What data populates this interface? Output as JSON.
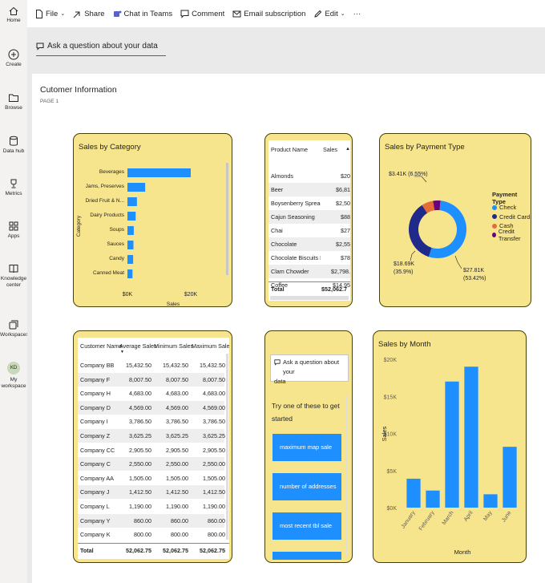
{
  "nav": {
    "home": "Home",
    "create": "Create",
    "browse": "Browse",
    "datahub": "Data hub",
    "metrics": "Metrics",
    "apps": "Apps",
    "knowledge1": "Knowledge",
    "knowledge2": "center",
    "workspaces": "Workspaces",
    "avatar": "KD",
    "myws1": "My",
    "myws2": "workspace"
  },
  "toolbar": {
    "file": "File",
    "share": "Share",
    "teams": "Chat in Teams",
    "comment": "Comment",
    "email": "Email subscription",
    "edit": "Edit",
    "more": "···"
  },
  "qa": {
    "placeholder": "Ask a question about your data"
  },
  "page": {
    "title": "Cutomer Information",
    "subtitle": "PAGE 1"
  },
  "colors": {
    "card_bg": "#f7e58d",
    "accent": "#1e8fff",
    "navy": "#1f2a8a",
    "orange": "#e66c37",
    "purple": "#6b007b"
  },
  "cat_chart": {
    "title": "Sales by Category",
    "xlabel": "Sales",
    "ylabel": "Category",
    "ticks": [
      "$0K",
      "$20K"
    ]
  },
  "prod_table": {
    "headers": [
      "Product Name",
      "Sales"
    ],
    "rows": [
      [
        "Almonds",
        "$20"
      ],
      [
        "Beer",
        "$6,81"
      ],
      [
        "Boysenberry Spread",
        "$2,50"
      ],
      [
        "Cajun Seasoning",
        "$88"
      ],
      [
        "Chai",
        "$27"
      ],
      [
        "Chocolate",
        "$2,55"
      ],
      [
        "Chocolate Biscuits Mix",
        "$78"
      ],
      [
        "Clam Chowder",
        "$2,798."
      ],
      [
        "Coffee",
        "$14,95"
      ]
    ],
    "total_label": "Total",
    "total_value": "$52,062.7"
  },
  "pay_chart": {
    "title": "Sales by Payment Type",
    "legend_title": "Payment Type",
    "labels": {
      "cash": "$3.41K (6.55%)",
      "transfer_pct": "",
      "credit": "$18.69K\n(35.9%)",
      "check": "$27.81K\n(53.42%)"
    },
    "label_lines": {
      "cash": "$3.41K (6.55%)",
      "credit_1": "$18.69K",
      "credit_2": "(35.9%)",
      "check_1": "$27.81K",
      "check_2": "(53.42%)"
    }
  },
  "cust_table": {
    "headers": [
      "Customer Name",
      "Average Sales",
      "Minimum Sales",
      "Maximum Sales"
    ],
    "rows": [
      [
        "Company BB",
        "15,432.50",
        "15,432.50",
        "15,432.50"
      ],
      [
        "Company F",
        "8,007.50",
        "8,007.50",
        "8,007.50"
      ],
      [
        "Company H",
        "4,683.00",
        "4,683.00",
        "4,683.00"
      ],
      [
        "Company D",
        "4,569.00",
        "4,569.00",
        "4,569.00"
      ],
      [
        "Company I",
        "3,786.50",
        "3,786.50",
        "3,786.50"
      ],
      [
        "Company Z",
        "3,625.25",
        "3,625.25",
        "3,625.25"
      ],
      [
        "Company CC",
        "2,905.50",
        "2,905.50",
        "2,905.50"
      ],
      [
        "Company C",
        "2,550.00",
        "2,550.00",
        "2,550.00"
      ],
      [
        "Company AA",
        "1,505.00",
        "1,505.00",
        "1,505.00"
      ],
      [
        "Company J",
        "1,412.50",
        "1,412.50",
        "1,412.50"
      ],
      [
        "Company L",
        "1,190.00",
        "1,190.00",
        "1,190.00"
      ],
      [
        "Company Y",
        "860.00",
        "860.00",
        "860.00"
      ],
      [
        "Company K",
        "800.00",
        "800.00",
        "800.00"
      ]
    ],
    "total": [
      "Total",
      "52,062.75",
      "52,062.75",
      "52,062.75"
    ]
  },
  "qa_card": {
    "input_line1": "Ask a question about your",
    "input_line2": "data",
    "prompt_line1": "Try one of these to get",
    "prompt_line2": "started",
    "suggestions": [
      "maximum map sale",
      "number of addresses",
      "most recent tbl sale"
    ]
  },
  "month_chart": {
    "title": "Sales by Month",
    "xlabel": "Month",
    "ylabel": "Sales"
  },
  "chart_data": [
    {
      "type": "bar",
      "title": "Sales by Category",
      "orientation": "horizontal",
      "categories": [
        "Beverages",
        "Jams, Preserves",
        "Dried Fruit & N...",
        "Dairy Products",
        "Soups",
        "Sauces",
        "Candy",
        "Canned Meat"
      ],
      "values": [
        20000,
        5600,
        3000,
        2600,
        2000,
        1900,
        1800,
        1600
      ],
      "xlabel": "Sales",
      "ylabel": "Category",
      "xlim": [
        0,
        25000
      ],
      "xticks": [
        "$0K",
        "$20K"
      ]
    },
    {
      "type": "pie",
      "title": "Sales by Payment Type",
      "categories": [
        "Check",
        "Credit Card",
        "Cash",
        "Credit Transfer"
      ],
      "values": [
        27810,
        18690,
        3410,
        2150
      ],
      "colors": [
        "#1e8fff",
        "#1f2a8a",
        "#e66c37",
        "#6b007b"
      ],
      "legend": "right"
    },
    {
      "type": "bar",
      "title": "Sales by Month",
      "categories": [
        "January",
        "February",
        "March",
        "April",
        "May",
        "June"
      ],
      "values": [
        3900,
        2300,
        17000,
        19000,
        1800,
        8200
      ],
      "xlabel": "Month",
      "ylabel": "Sales",
      "ylim": [
        0,
        20000
      ],
      "yticks": [
        "$0K",
        "$5K",
        "$10K",
        "$15K",
        "$20K"
      ]
    }
  ]
}
